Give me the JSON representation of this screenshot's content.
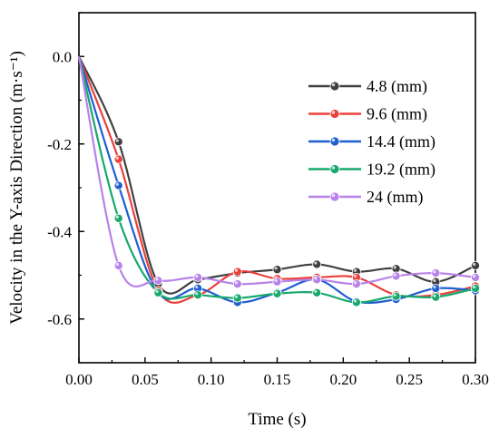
{
  "chart_data": {
    "type": "line",
    "title": "",
    "xlabel": "Time (s)",
    "ylabel": "Velocity in the Y-axis Direction (m·s⁻¹)",
    "xlim": [
      0.0,
      0.3
    ],
    "ylim": [
      -0.7,
      0.1
    ],
    "x_ticks": [
      "0.00",
      "0.05",
      "0.10",
      "0.15",
      "0.20",
      "0.25",
      "0.30"
    ],
    "y_ticks": [
      "0.0",
      "-0.2",
      "-0.4",
      "-0.6"
    ],
    "grid": false,
    "legend_position": "top-right",
    "x": [
      0.0,
      0.03,
      0.06,
      0.09,
      0.12,
      0.15,
      0.18,
      0.21,
      0.24,
      0.27,
      0.3
    ],
    "series": [
      {
        "name": "4.8 (mm)",
        "color": "#404040",
        "values": [
          0.0,
          -0.195,
          -0.52,
          -0.51,
          -0.495,
          -0.487,
          -0.475,
          -0.492,
          -0.485,
          -0.515,
          -0.478
        ]
      },
      {
        "name": "9.6 (mm)",
        "color": "#e8413c",
        "values": [
          0.0,
          -0.235,
          -0.535,
          -0.545,
          -0.492,
          -0.508,
          -0.505,
          -0.505,
          -0.545,
          -0.545,
          -0.525
        ]
      },
      {
        "name": "14.4 (mm)",
        "color": "#1f5fd0",
        "values": [
          0.0,
          -0.295,
          -0.54,
          -0.53,
          -0.562,
          -0.54,
          -0.51,
          -0.56,
          -0.555,
          -0.53,
          -0.535
        ]
      },
      {
        "name": "19.2 (mm)",
        "color": "#17a86c",
        "values": [
          0.0,
          -0.37,
          -0.54,
          -0.545,
          -0.552,
          -0.542,
          -0.54,
          -0.562,
          -0.548,
          -0.55,
          -0.53
        ]
      },
      {
        "name": "24 (mm)",
        "color": "#b882ea",
        "values": [
          0.0,
          -0.478,
          -0.512,
          -0.505,
          -0.52,
          -0.515,
          -0.51,
          -0.52,
          -0.502,
          -0.495,
          -0.505
        ]
      }
    ]
  }
}
